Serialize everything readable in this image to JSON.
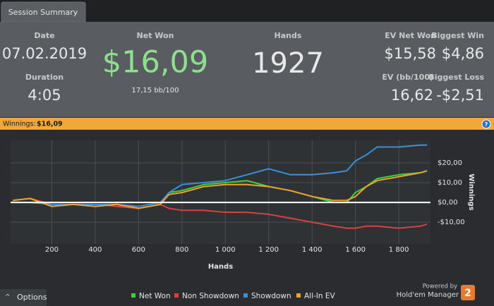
{
  "tab": "Session Summary",
  "stats": {
    "date": {
      "label": "Date",
      "value": "07.02.2019"
    },
    "duration": {
      "label": "Duration",
      "value": "4:05"
    },
    "net_won": {
      "label": "Net Won",
      "value": "$16,09",
      "sub": "17,15 bb/100"
    },
    "hands": {
      "label": "Hands",
      "value": "1927"
    },
    "ev_net_won": {
      "label": "EV Net Won",
      "value": "$15,58"
    },
    "biggest_win": {
      "label": "Biggest Win",
      "value": "$4,86"
    },
    "ev_bb": {
      "label": "EV (bb/100)",
      "value": "16,62"
    },
    "biggest_loss": {
      "label": "Biggest Loss",
      "value": "-$2,51"
    }
  },
  "banner": {
    "label": "Winnings:",
    "value": "$16,09"
  },
  "chart": {
    "type": "line",
    "x_label": "Hands",
    "y_label": "Winnings",
    "x": [
      20,
      100,
      200,
      300,
      400,
      500,
      600,
      700,
      740,
      800,
      900,
      1000,
      1100,
      1200,
      1300,
      1400,
      1500,
      1560,
      1600,
      1650,
      1700,
      1800,
      1900,
      1930
    ],
    "series": [
      {
        "name": "Net Won",
        "color": "#3ad43a",
        "values": [
          1,
          2,
          -2,
          -1,
          -2,
          -1,
          -3,
          -1,
          5,
          6,
          9,
          10,
          11,
          8,
          6,
          3,
          0,
          0,
          5,
          8,
          12,
          14,
          15,
          16
        ]
      },
      {
        "name": "Non Showdown",
        "color": "#d9413f",
        "values": [
          1,
          2,
          -1,
          -1,
          -1,
          -2,
          -3,
          -1,
          -3,
          -4,
          -4,
          -5,
          -5,
          -6,
          -8,
          -10,
          -12,
          -13,
          -13,
          -12,
          -12,
          -13,
          -12,
          -11
        ]
      },
      {
        "name": "Showdown",
        "color": "#3a8fd8",
        "values": [
          0,
          0,
          -1,
          -1,
          -1,
          -1,
          -2,
          0,
          5,
          9,
          10,
          11,
          14,
          17,
          14,
          14,
          15,
          16,
          21,
          24,
          28,
          28,
          29,
          29
        ]
      },
      {
        "name": "All-In EV",
        "color": "#f0a030",
        "values": [
          1,
          2,
          -2,
          -1,
          -2,
          -1,
          -3,
          -1,
          4,
          5,
          8,
          9,
          9,
          8,
          6,
          3,
          1,
          1,
          3,
          8,
          11,
          13,
          15,
          16
        ]
      }
    ],
    "xlim": [
      10,
      1946
    ],
    "ylim": [
      -21,
      31.4
    ],
    "xticks": [
      200,
      400,
      600,
      800,
      {
        "value": 1000,
        "label": "1 000"
      },
      {
        "value": 1200,
        "label": "1 200"
      },
      {
        "value": 1400,
        "label": "1 400"
      },
      {
        "value": 1600,
        "label": "1 600"
      },
      {
        "value": 1800,
        "label": "1 800"
      }
    ],
    "yticks": [
      {
        "value": -10,
        "label": "-$10,00"
      },
      {
        "value": 0,
        "label": "$0,00"
      },
      {
        "value": 10,
        "label": "$10,00"
      },
      {
        "value": 20,
        "label": "$20,00"
      }
    ],
    "grid": true
  },
  "footer": {
    "options": "Options",
    "powered_by": "Powered by",
    "brand": "Hold'em Manager",
    "badge": "2"
  }
}
